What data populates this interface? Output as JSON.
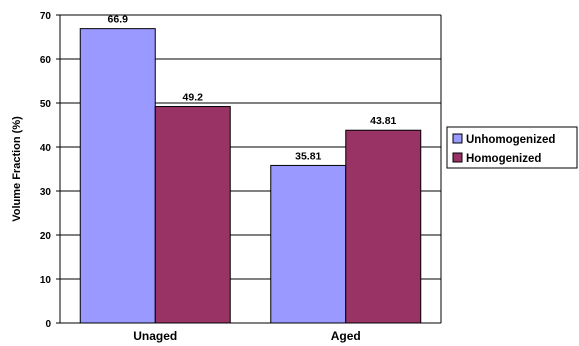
{
  "chart_data": {
    "type": "bar",
    "title": "",
    "xlabel": "",
    "ylabel": "Volume Fraction (%)",
    "ylim": [
      0,
      70
    ],
    "yticks": [
      0,
      10,
      20,
      30,
      40,
      50,
      60,
      70
    ],
    "grid": true,
    "legend_position": "right",
    "categories": [
      "Unaged",
      "Aged"
    ],
    "series": [
      {
        "name": "Unhomogenized",
        "values": [
          66.9,
          35.81
        ],
        "labels": [
          "66.9",
          "35.81"
        ],
        "color": "#9999ff"
      },
      {
        "name": "Homogenized",
        "values": [
          49.2,
          43.81
        ],
        "labels": [
          "49.2",
          "43.81"
        ],
        "color": "#993366"
      }
    ]
  }
}
